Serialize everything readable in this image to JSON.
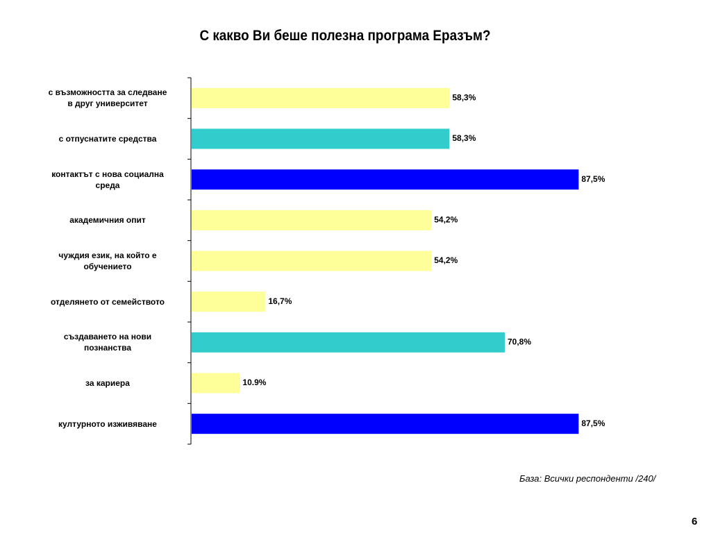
{
  "chart_data": {
    "type": "hbar",
    "title": "С какво Ви беше полезна програма Еразъм?",
    "categories": [
      "с възможността за следване\nв друг университет",
      "с отпуснатите средства",
      "контактът с нова социална\nсреда",
      "академичния опит",
      "чуждия език, на който е\nобучението",
      "отделянето от семейството",
      "създаването на нови\nпознанства",
      "за кариера",
      "културното изживяване"
    ],
    "values": [
      58.3,
      58.3,
      87.5,
      54.2,
      54.2,
      16.7,
      70.8,
      10.9,
      87.5
    ],
    "value_labels": [
      "58,3%",
      "58,3%",
      "87,5%",
      "54,2%",
      "54,2%",
      "16,7%",
      "70,8%",
      "10.9%",
      "87,5%"
    ],
    "colors": [
      "#ffff99",
      "#33cccc",
      "#0000ff",
      "#ffff99",
      "#ffff99",
      "#ffff99",
      "#33cccc",
      "#ffff99",
      "#0000ff"
    ],
    "xlim": [
      0,
      100
    ],
    "note": "База: Всички респонденти /240/",
    "page_number": "6"
  }
}
